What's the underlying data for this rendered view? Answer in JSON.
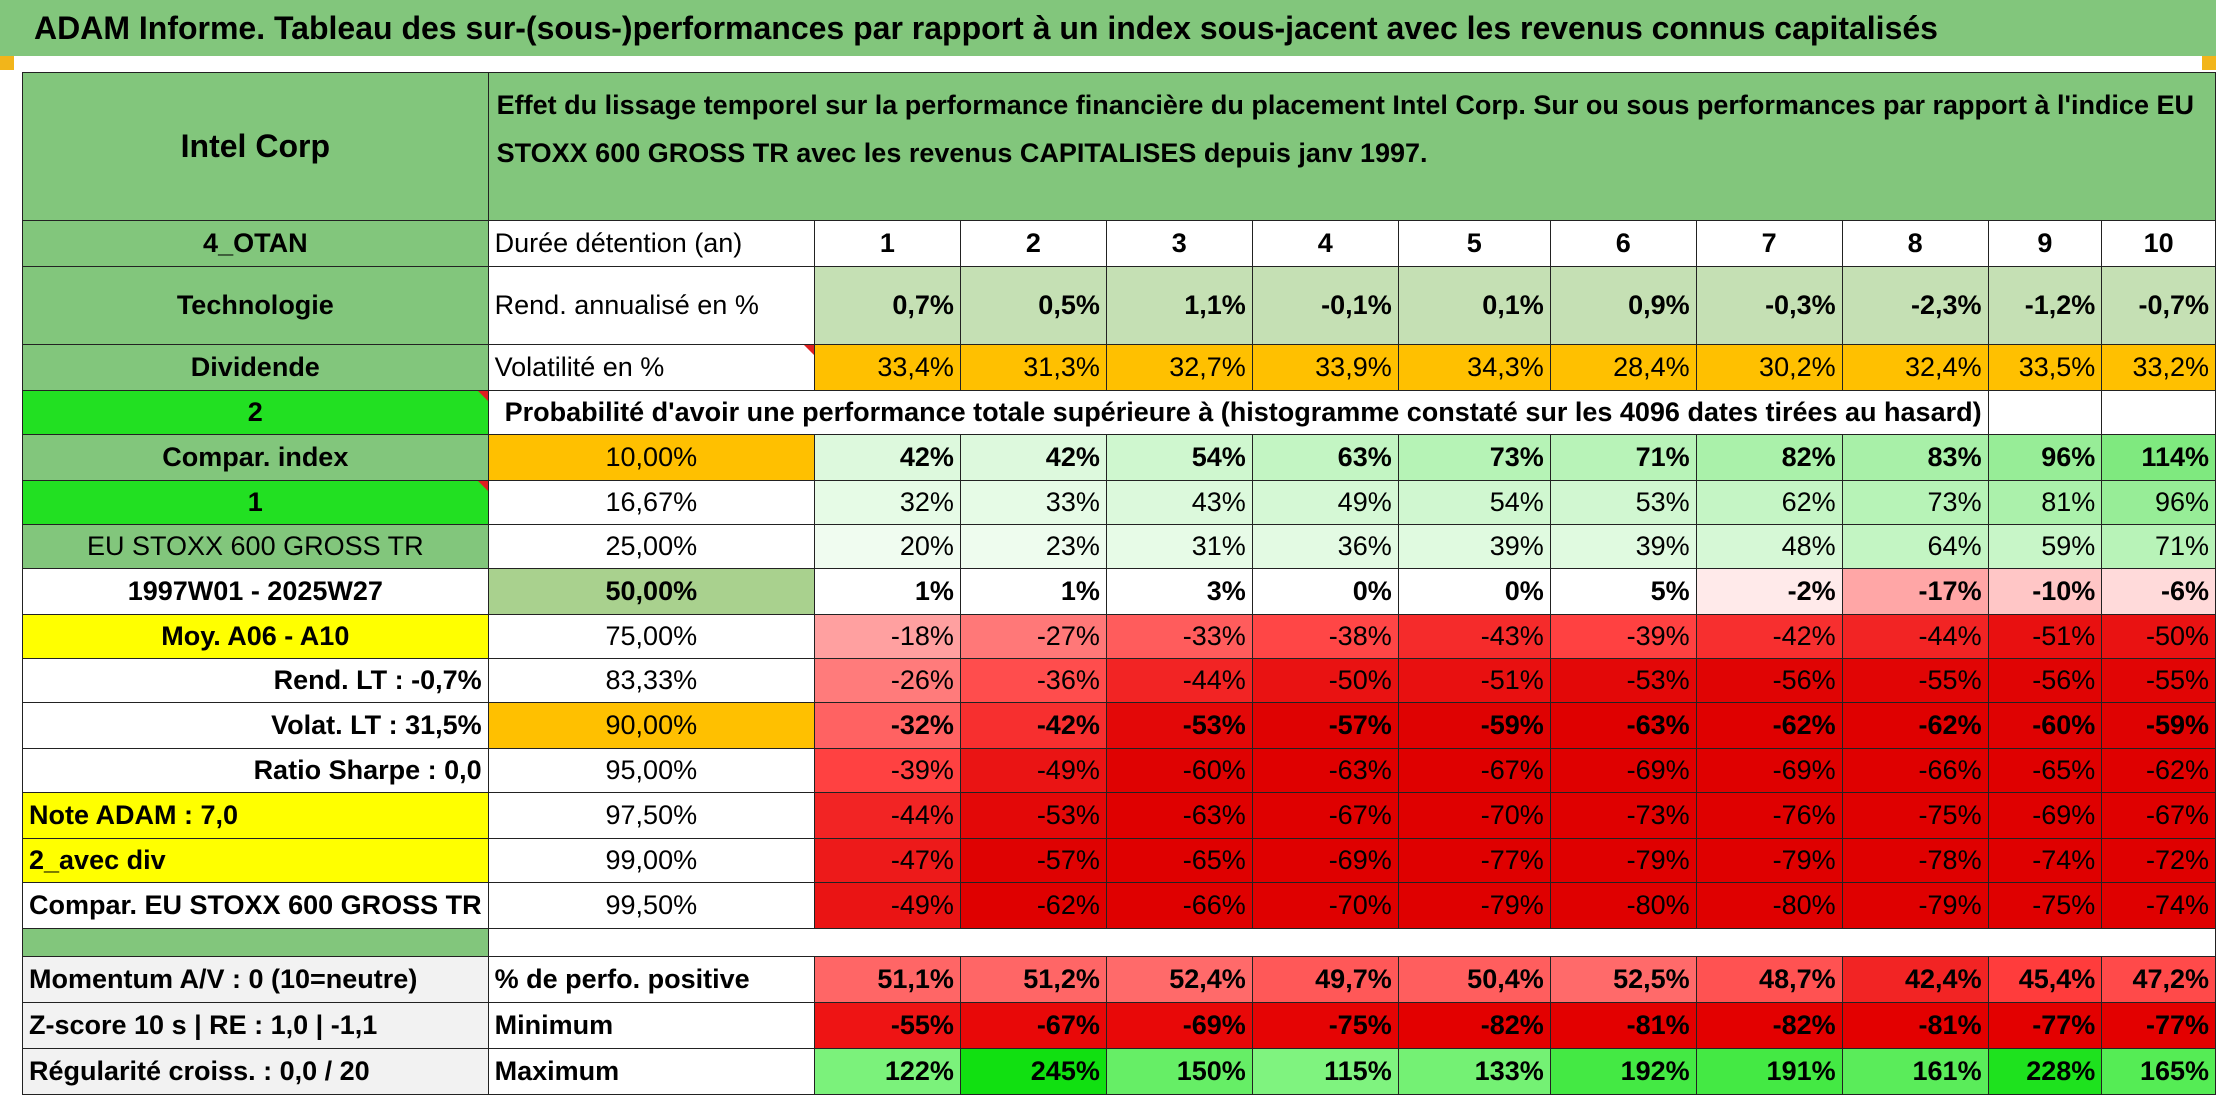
{
  "title": "ADAM Informe. Tableau des sur-(sous-)performances par rapport à un index sous-jacent avec les revenus connus capitalisés",
  "left": {
    "company": "Intel Corp",
    "code": "4_OTAN",
    "sector": "Technologie",
    "dividend": "Dividende",
    "num2": "2",
    "compar_index": "Compar. index",
    "num1": "1",
    "index_name": "EU STOXX 600 GROSS TR",
    "period": "1997W01 - 2025W27",
    "moy": "Moy. A06 - A10",
    "rend_lt": "Rend. LT :   -0,7%",
    "volat_lt": "Volat. LT :   31,5%",
    "sharpe": "Ratio Sharpe :   0,0",
    "note": "Note ADAM : 7,0",
    "avec_div": "2_avec div",
    "compar_full": "Compar. EU STOXX 600 GROSS TR",
    "momentum": "Momentum A/V : 0 (10=neutre)",
    "zscore": "Z-score 10 s | RE : 1,0 | -1,1",
    "regularite": "Régularité croiss. : 0,0 / 20"
  },
  "header": {
    "effect_text": "Effet du lissage temporel sur la performance financière du placement Intel Corp. Sur ou sous performances par rapport à l'indice EU STOXX 600 GROSS TR avec les revenus CAPITALISES depuis janv 1997.",
    "duree_label": "Durée détention (an)",
    "years": [
      "1",
      "2",
      "3",
      "4",
      "5",
      "6",
      "7",
      "8",
      "9",
      "10"
    ],
    "rend_label": "Rend. annualisé en %",
    "rend": [
      "0,7%",
      "0,5%",
      "1,1%",
      "-0,1%",
      "0,1%",
      "0,9%",
      "-0,3%",
      "-2,3%",
      "-1,2%",
      "-0,7%"
    ],
    "vol_label": "Volatilité en %",
    "vol": [
      "33,4%",
      "31,3%",
      "32,7%",
      "33,9%",
      "34,3%",
      "28,4%",
      "30,2%",
      "32,4%",
      "33,5%",
      "33,2%"
    ],
    "prob_text": "Probabilité d'avoir une performance totale supérieure à (histogramme constaté sur les 4096 dates tirées au hasard)"
  },
  "prob_rows": [
    {
      "pct": "10,00%",
      "cells": [
        "42%",
        "42%",
        "54%",
        "63%",
        "73%",
        "71%",
        "82%",
        "83%",
        "96%",
        "114%"
      ],
      "colors": [
        "#ddf9dd",
        "#ddf9dd",
        "#cff7cf",
        "#c3f5c3",
        "#b6f3b6",
        "#b8f3b8",
        "#aaf1aa",
        "#a8f0a8",
        "#97ed97",
        "#7fe97f"
      ]
    },
    {
      "pct": "16,67%",
      "cells": [
        "32%",
        "33%",
        "43%",
        "49%",
        "54%",
        "53%",
        "62%",
        "73%",
        "81%",
        "96%"
      ],
      "colors": [
        "#e6fbe6",
        "#e6fbe6",
        "#dcf9dc",
        "#d5f8d5",
        "#d0f7d0",
        "#d1f7d1",
        "#c5f5c5",
        "#b7f3b7",
        "#abf1ab",
        "#97ed97"
      ]
    },
    {
      "pct": "25,00%",
      "cells": [
        "20%",
        "23%",
        "31%",
        "36%",
        "39%",
        "39%",
        "48%",
        "64%",
        "59%",
        "71%"
      ],
      "colors": [
        "#f0fcf0",
        "#eefcee",
        "#e7fbe7",
        "#e3fae3",
        "#e0fae0",
        "#e0fae0",
        "#d6f8d6",
        "#c3f5c3",
        "#c8f6c8",
        "#b8f3b8"
      ]
    },
    {
      "pct": "50,00%",
      "cells": [
        "1%",
        "1%",
        "3%",
        "0%",
        "0%",
        "5%",
        "-2%",
        "-17%",
        "-10%",
        "-6%"
      ],
      "colors": [
        "#ffffff",
        "#ffffff",
        "#ffffff",
        "#ffffff",
        "#ffffff",
        "#ffffff",
        "#ffeaea",
        "#ffa6a6",
        "#ffc6c6",
        "#ffdada"
      ]
    },
    {
      "pct": "75,00%",
      "cells": [
        "-18%",
        "-27%",
        "-33%",
        "-38%",
        "-43%",
        "-39%",
        "-42%",
        "-44%",
        "-51%",
        "-50%"
      ],
      "colors": [
        "#ffa0a0",
        "#ff7878",
        "#ff5c5c",
        "#ff4646",
        "#f52b2b",
        "#ff4141",
        "#f72f2f",
        "#f22424",
        "#e81010",
        "#e91212"
      ]
    },
    {
      "pct": "83,33%",
      "cells": [
        "-26%",
        "-36%",
        "-44%",
        "-50%",
        "-51%",
        "-53%",
        "-56%",
        "-55%",
        "-56%",
        "-55%"
      ],
      "colors": [
        "#ff7b7b",
        "#ff4d4d",
        "#f22424",
        "#e91212",
        "#e81010",
        "#e30808",
        "#e00404",
        "#e10505",
        "#e00404",
        "#e10505"
      ]
    },
    {
      "pct": "90,00%",
      "cells": [
        "-32%",
        "-42%",
        "-53%",
        "-57%",
        "-59%",
        "-63%",
        "-62%",
        "-62%",
        "-60%",
        "-59%"
      ],
      "colors": [
        "#ff6262",
        "#f72f2f",
        "#e30808",
        "#df0202",
        "#df0202",
        "#df0000",
        "#df0000",
        "#df0000",
        "#df0202",
        "#df0202"
      ]
    },
    {
      "pct": "95,00%",
      "cells": [
        "-39%",
        "-49%",
        "-60%",
        "-63%",
        "-67%",
        "-69%",
        "-69%",
        "-66%",
        "-65%",
        "-62%"
      ],
      "colors": [
        "#ff4141",
        "#ea1414",
        "#df0202",
        "#df0000",
        "#df0000",
        "#df0000",
        "#df0000",
        "#df0000",
        "#df0000",
        "#df0000"
      ]
    },
    {
      "pct": "97,50%",
      "cells": [
        "-44%",
        "-53%",
        "-63%",
        "-67%",
        "-70%",
        "-73%",
        "-76%",
        "-75%",
        "-69%",
        "-67%"
      ],
      "colors": [
        "#f22424",
        "#e30808",
        "#df0000",
        "#df0000",
        "#df0000",
        "#df0000",
        "#df0000",
        "#df0000",
        "#df0000",
        "#df0000"
      ]
    },
    {
      "pct": "99,00%",
      "cells": [
        "-47%",
        "-57%",
        "-65%",
        "-69%",
        "-77%",
        "-79%",
        "-79%",
        "-78%",
        "-74%",
        "-72%"
      ],
      "colors": [
        "#ed1a1a",
        "#df0202",
        "#df0000",
        "#df0000",
        "#df0000",
        "#df0000",
        "#df0000",
        "#df0000",
        "#df0000",
        "#df0000"
      ]
    },
    {
      "pct": "99,50%",
      "cells": [
        "-49%",
        "-62%",
        "-66%",
        "-70%",
        "-79%",
        "-80%",
        "-80%",
        "-79%",
        "-75%",
        "-74%"
      ],
      "colors": [
        "#ea1414",
        "#df0000",
        "#df0000",
        "#df0000",
        "#df0000",
        "#df0000",
        "#df0000",
        "#df0000",
        "#df0000",
        "#df0000"
      ]
    }
  ],
  "bottom": {
    "pos_label": "% de perfo. positive",
    "pos": [
      "51,1%",
      "51,2%",
      "52,4%",
      "49,7%",
      "50,4%",
      "52,5%",
      "48,7%",
      "42,4%",
      "45,4%",
      "47,2%"
    ],
    "pos_colors": [
      "#ff6666",
      "#ff6666",
      "#ff6a6a",
      "#ff5858",
      "#ff5e5e",
      "#ff6a6a",
      "#ff5252",
      "#f22424",
      "#ff3c3c",
      "#ff4a4a"
    ],
    "min_label": "Minimum",
    "min": [
      "-55%",
      "-67%",
      "-69%",
      "-75%",
      "-82%",
      "-81%",
      "-82%",
      "-81%",
      "-77%",
      "-77%"
    ],
    "min_colors": [
      "#ee1414",
      "#e80808",
      "#e80808",
      "#e50404",
      "#e30000",
      "#e30000",
      "#e30000",
      "#e30000",
      "#e30000",
      "#e30000"
    ],
    "max_label": "Maximum",
    "max": [
      "122%",
      "245%",
      "150%",
      "115%",
      "133%",
      "192%",
      "191%",
      "161%",
      "228%",
      "165%"
    ],
    "max_colors": [
      "#7bf27b",
      "#11e011",
      "#66ee66",
      "#7ff37f",
      "#74f174",
      "#44e944",
      "#44e944",
      "#5aec5a",
      "#1ee21e",
      "#55ec55"
    ]
  },
  "colors": {
    "header_green": "#82c67c",
    "bright_green": "#22e022",
    "yellow": "#ffff00",
    "orange": "#ffc000",
    "period_red": "#d71f1f",
    "rend_bg": "#c5e0b4"
  }
}
